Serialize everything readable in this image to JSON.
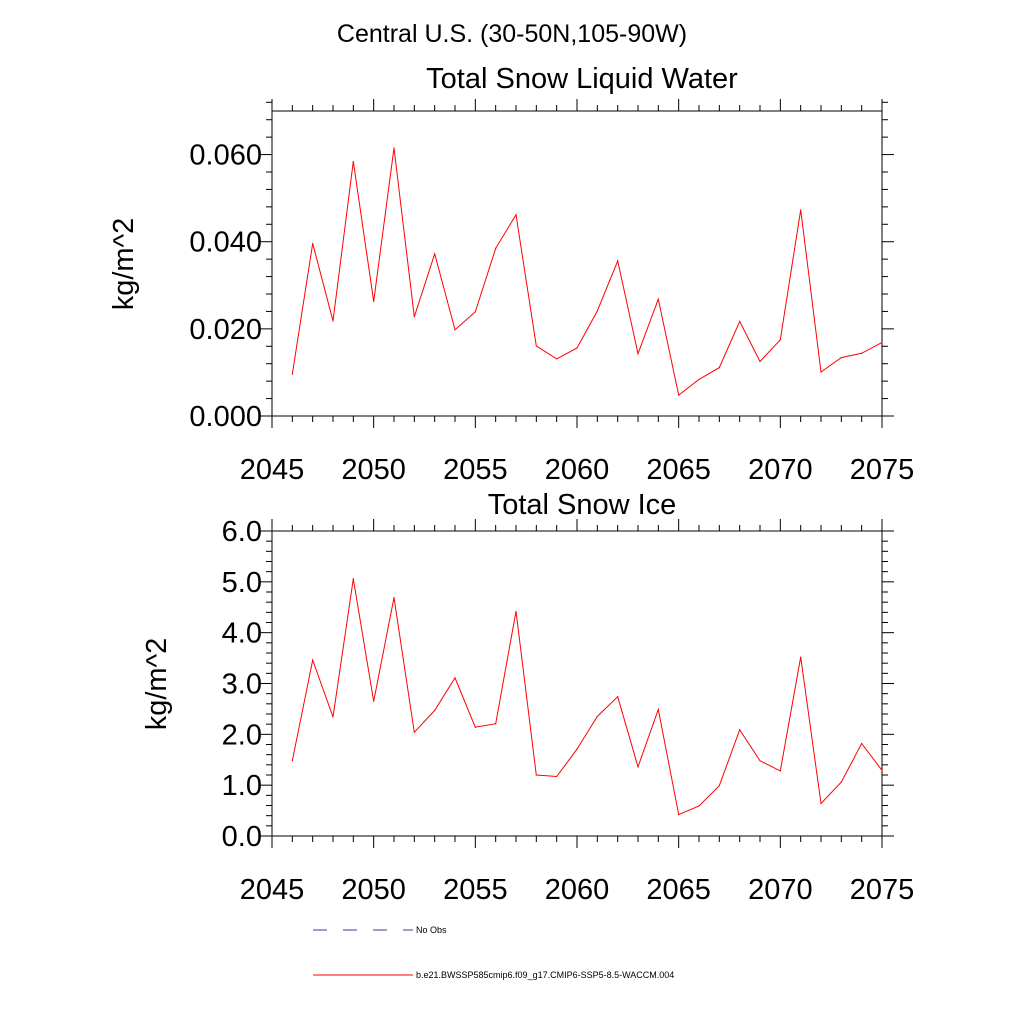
{
  "region_title": "Central U.S. (30-50N,105-90W)",
  "legend": {
    "items": [
      {
        "label": "No Obs",
        "style": "dashed",
        "color": "#3a3a8c"
      },
      {
        "label": "b.e21.BWSSP585cmip6.f09_g17.CMIP6-SSP5-8.5-WACCM.004",
        "style": "solid",
        "color": "#ff0000"
      }
    ]
  },
  "colors": {
    "series": "#ff0000",
    "axes": "#000000",
    "nobs": "#3a3a8c"
  },
  "chart_data": [
    {
      "type": "line",
      "title": "Total Snow Liquid Water",
      "xlabel": "",
      "ylabel": "kg/m^2",
      "xlim": [
        2045,
        2075
      ],
      "ylim": [
        0,
        0.07
      ],
      "xticks": [
        2045,
        2050,
        2055,
        2060,
        2065,
        2070,
        2075
      ],
      "yticks": [
        0.0,
        0.02,
        0.04,
        0.06
      ],
      "ytick_labels": [
        "0.000",
        "0.020",
        "0.040",
        "0.060"
      ],
      "x": [
        2046,
        2047,
        2048,
        2049,
        2050,
        2051,
        2052,
        2053,
        2054,
        2055,
        2056,
        2057,
        2058,
        2059,
        2060,
        2061,
        2062,
        2063,
        2064,
        2065,
        2066,
        2067,
        2068,
        2069,
        2070,
        2071,
        2072,
        2073,
        2074,
        2075
      ],
      "series": [
        {
          "name": "b.e21.BWSSP585cmip6.f09_g17.CMIP6-SSP5-8.5-WACCM.004",
          "values": [
            0.0096,
            0.0396,
            0.0218,
            0.0584,
            0.0263,
            0.0615,
            0.0228,
            0.0372,
            0.0198,
            0.0239,
            0.0385,
            0.0462,
            0.0161,
            0.0131,
            0.0156,
            0.0241,
            0.0356,
            0.0143,
            0.0268,
            0.0048,
            0.0084,
            0.0111,
            0.0217,
            0.0125,
            0.0175,
            0.0473,
            0.0101,
            0.0134,
            0.0144,
            0.0169
          ]
        }
      ]
    },
    {
      "type": "line",
      "title": "Total Snow Ice",
      "xlabel": "",
      "ylabel": "kg/m^2",
      "xlim": [
        2045,
        2075
      ],
      "ylim": [
        0,
        6
      ],
      "xticks": [
        2045,
        2050,
        2055,
        2060,
        2065,
        2070,
        2075
      ],
      "yticks": [
        0,
        1,
        2,
        3,
        4,
        5,
        6
      ],
      "ytick_labels": [
        "0.0",
        "1.0",
        "2.0",
        "3.0",
        "4.0",
        "5.0",
        "6.0"
      ],
      "x": [
        2046,
        2047,
        2048,
        2049,
        2050,
        2051,
        2052,
        2053,
        2054,
        2055,
        2056,
        2057,
        2058,
        2059,
        2060,
        2061,
        2062,
        2063,
        2064,
        2065,
        2066,
        2067,
        2068,
        2069,
        2070,
        2071,
        2072,
        2073,
        2074,
        2075
      ],
      "series": [
        {
          "name": "b.e21.BWSSP585cmip6.f09_g17.CMIP6-SSP5-8.5-WACCM.004",
          "values": [
            1.48,
            3.46,
            2.34,
            5.06,
            2.65,
            4.69,
            2.04,
            2.47,
            3.11,
            2.14,
            2.21,
            4.42,
            1.2,
            1.17,
            1.71,
            2.35,
            2.74,
            1.36,
            2.49,
            0.42,
            0.59,
            0.99,
            2.09,
            1.48,
            1.28,
            3.52,
            0.64,
            1.06,
            1.82,
            1.29
          ]
        }
      ]
    }
  ]
}
